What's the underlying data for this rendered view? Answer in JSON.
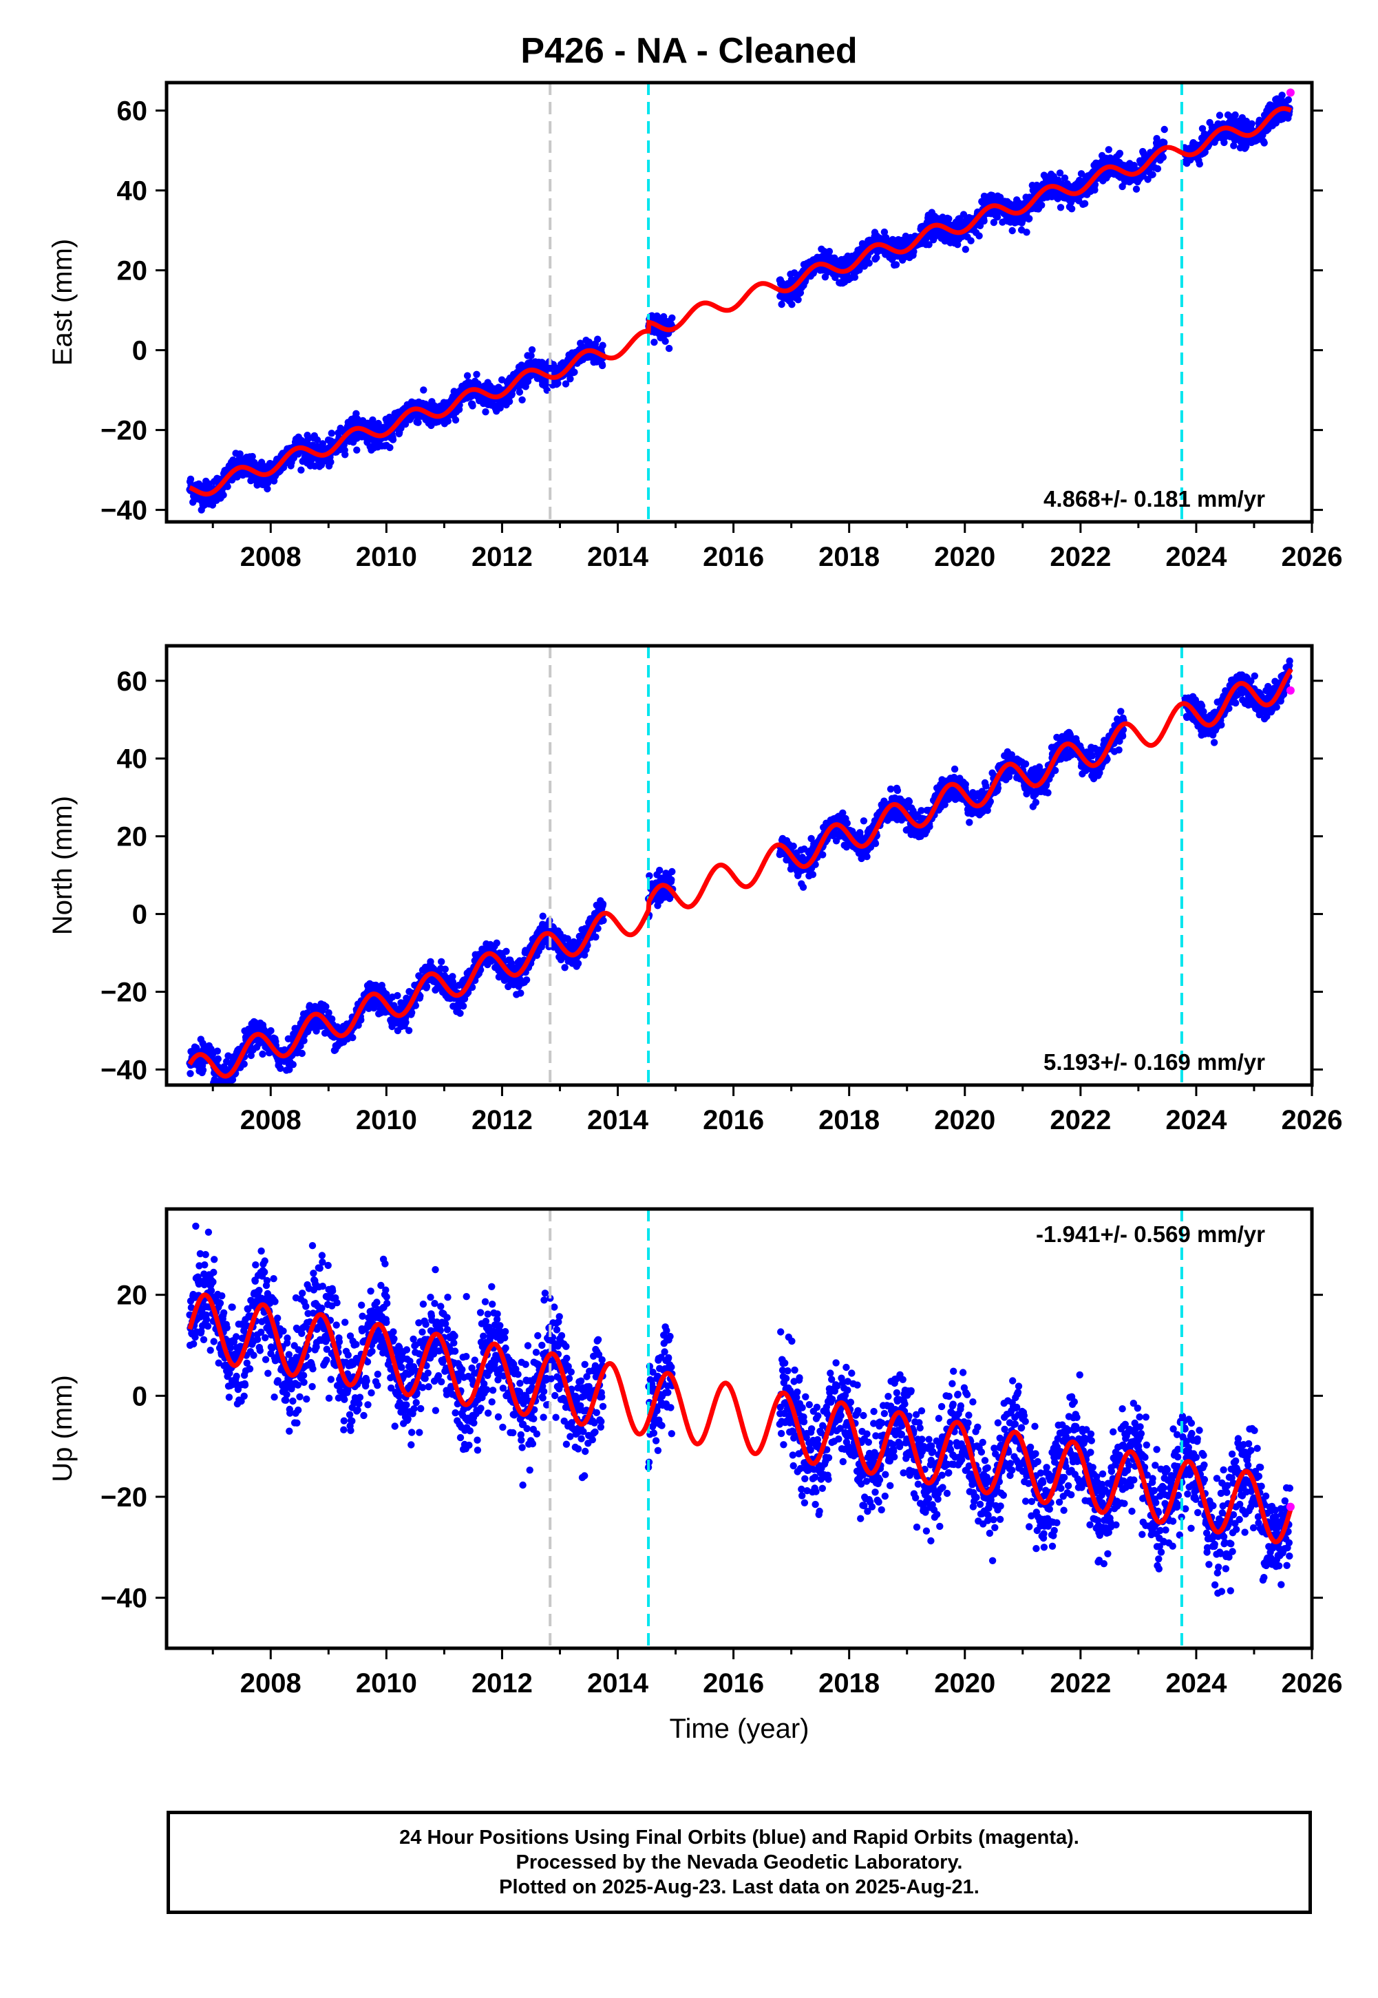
{
  "title": "P426  - NA - Cleaned",
  "footer": {
    "line1": "24 Hour Positions Using Final Orbits (blue) and Rapid Orbits (magenta).",
    "line2": "Processed by the Nevada Geodetic Laboratory.",
    "line3": "Plotted on 2025-Aug-23. Last data on 2025-Aug-21."
  },
  "colors": {
    "final_orbits": "#0000ff",
    "rapid_orbits": "#ff00ff",
    "model": "#ff0000",
    "equipment_change": "#c8c8c8",
    "event": "#00e5ee"
  },
  "chart_data": [
    {
      "type": "scatter",
      "component": "east",
      "title": "P426  - NA - Cleaned",
      "xlabel": "",
      "ylabel": "East (mm)",
      "xlim": [
        2006.2,
        2026.0
      ],
      "ylim": [
        -43,
        67
      ],
      "xticks": [
        2008,
        2010,
        2012,
        2014,
        2016,
        2018,
        2020,
        2022,
        2024,
        2026
      ],
      "yticks": [
        -40,
        -20,
        0,
        20,
        40,
        60
      ],
      "rate_label": "4.868+/- 0.181 mm/yr",
      "rate_position": "bottom-right",
      "vertical_lines": [
        {
          "x": 2012.83,
          "style": "gray-dashed"
        },
        {
          "x": 2014.53,
          "style": "cyan-dashed"
        },
        {
          "x": 2023.75,
          "style": "cyan-dashed"
        }
      ],
      "model": {
        "intercept": -35.6,
        "rate": 4.868,
        "annual_amp": 2.0,
        "annual_phase": 0.2,
        "step_2014_53": 2.2,
        "start": 2006.6,
        "end": 2025.64
      },
      "data_spans": [
        [
          2006.6,
          2013.75
        ],
        [
          2014.53,
          2014.95
        ],
        [
          2016.8,
          2023.45
        ],
        [
          2023.8,
          2025.62
        ]
      ],
      "scatter_noise_mm": 1.6,
      "rapid_point": {
        "x": 2025.63,
        "y": 64.5
      }
    },
    {
      "type": "scatter",
      "component": "north",
      "xlabel": "",
      "ylabel": "North (mm)",
      "xlim": [
        2006.2,
        2026.0
      ],
      "ylim": [
        -44,
        69
      ],
      "xticks": [
        2008,
        2010,
        2012,
        2014,
        2016,
        2018,
        2020,
        2022,
        2024,
        2026
      ],
      "yticks": [
        -40,
        -20,
        0,
        20,
        40,
        60
      ],
      "rate_label": "5.193+/- 0.169 mm/yr",
      "rate_position": "bottom-right",
      "vertical_lines": [
        {
          "x": 2012.83,
          "style": "gray-dashed"
        },
        {
          "x": 2014.53,
          "style": "cyan-dashed"
        },
        {
          "x": 2023.75,
          "style": "cyan-dashed"
        }
      ],
      "model": {
        "intercept": -41.0,
        "rate": 5.193,
        "annual_amp": 4.0,
        "annual_phase": 0.5,
        "step_2014_53": 2.0,
        "start": 2006.6,
        "end": 2025.64
      },
      "data_spans": [
        [
          2006.6,
          2013.75
        ],
        [
          2014.53,
          2014.95
        ],
        [
          2016.8,
          2022.75
        ],
        [
          2023.8,
          2025.62
        ]
      ],
      "scatter_noise_mm": 1.8,
      "rapid_point": {
        "x": 2025.63,
        "y": 57.5
      }
    },
    {
      "type": "scatter",
      "component": "up",
      "xlabel": "Time (year)",
      "ylabel": "Up (mm)",
      "xlim": [
        2006.2,
        2026.0
      ],
      "ylim": [
        -50,
        37
      ],
      "xticks": [
        2008,
        2010,
        2012,
        2014,
        2016,
        2018,
        2020,
        2022,
        2024,
        2026
      ],
      "yticks": [
        -40,
        -20,
        0,
        20
      ],
      "rate_label": "-1.941+/- 0.569 mm/yr",
      "rate_position": "top-right",
      "vertical_lines": [
        {
          "x": 2012.83,
          "style": "gray-dashed"
        },
        {
          "x": 2014.53,
          "style": "cyan-dashed"
        },
        {
          "x": 2023.75,
          "style": "cyan-dashed"
        }
      ],
      "model": {
        "intercept": 14.0,
        "rate": -1.941,
        "annual_amp": 6.5,
        "annual_phase": 0.62,
        "step_2014_53": 0,
        "start": 2006.6,
        "end": 2025.64
      },
      "data_spans": [
        [
          2006.6,
          2013.75
        ],
        [
          2014.53,
          2014.95
        ],
        [
          2016.8,
          2025.62
        ]
      ],
      "scatter_noise_mm": 5.0,
      "rapid_point": {
        "x": 2025.63,
        "y": -22.0
      }
    }
  ]
}
